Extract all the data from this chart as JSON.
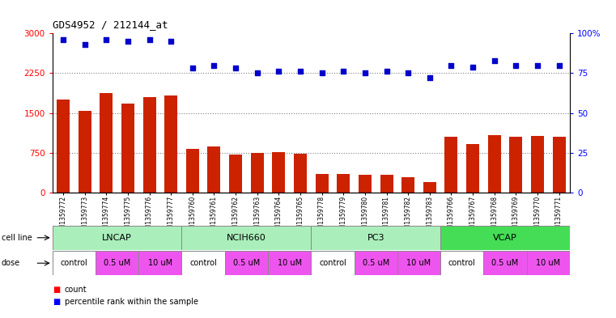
{
  "title": "GDS4952 / 212144_at",
  "samples": [
    "GSM1359772",
    "GSM1359773",
    "GSM1359774",
    "GSM1359775",
    "GSM1359776",
    "GSM1359777",
    "GSM1359760",
    "GSM1359761",
    "GSM1359762",
    "GSM1359763",
    "GSM1359764",
    "GSM1359765",
    "GSM1359778",
    "GSM1359779",
    "GSM1359780",
    "GSM1359781",
    "GSM1359782",
    "GSM1359783",
    "GSM1359766",
    "GSM1359767",
    "GSM1359768",
    "GSM1359769",
    "GSM1359770",
    "GSM1359771"
  ],
  "counts": [
    1750,
    1540,
    1870,
    1680,
    1800,
    1830,
    820,
    870,
    720,
    750,
    760,
    730,
    350,
    350,
    330,
    330,
    290,
    200,
    1050,
    920,
    1080,
    1050,
    1060,
    1050
  ],
  "percentile_ranks": [
    96,
    93,
    96,
    95,
    96,
    95,
    78,
    80,
    78,
    75,
    76,
    76,
    75,
    76,
    75,
    76,
    75,
    72,
    80,
    79,
    83,
    80,
    80,
    80
  ],
  "bar_color": "#cc2200",
  "dot_color": "#0000cc",
  "cell_lines": [
    {
      "name": "LNCAP",
      "start": 0,
      "end": 6,
      "color": "#aaeebb"
    },
    {
      "name": "NCIH660",
      "start": 6,
      "end": 12,
      "color": "#aaeebb"
    },
    {
      "name": "PC3",
      "start": 12,
      "end": 18,
      "color": "#aaeebb"
    },
    {
      "name": "VCAP",
      "start": 18,
      "end": 24,
      "color": "#44dd55"
    }
  ],
  "doses": [
    {
      "label": "control",
      "start": 0,
      "end": 2,
      "color": "#ffffff"
    },
    {
      "label": "0.5 uM",
      "start": 2,
      "end": 4,
      "color": "#ee55ee"
    },
    {
      "label": "10 uM",
      "start": 4,
      "end": 6,
      "color": "#ee55ee"
    },
    {
      "label": "control",
      "start": 6,
      "end": 8,
      "color": "#ffffff"
    },
    {
      "label": "0.5 uM",
      "start": 8,
      "end": 10,
      "color": "#ee55ee"
    },
    {
      "label": "10 uM",
      "start": 10,
      "end": 12,
      "color": "#ee55ee"
    },
    {
      "label": "control",
      "start": 12,
      "end": 14,
      "color": "#ffffff"
    },
    {
      "label": "0.5 uM",
      "start": 14,
      "end": 16,
      "color": "#ee55ee"
    },
    {
      "label": "10 uM",
      "start": 16,
      "end": 18,
      "color": "#ee55ee"
    },
    {
      "label": "control",
      "start": 18,
      "end": 20,
      "color": "#ffffff"
    },
    {
      "label": "0.5 uM",
      "start": 20,
      "end": 22,
      "color": "#ee55ee"
    },
    {
      "label": "10 uM",
      "start": 22,
      "end": 24,
      "color": "#ee55ee"
    }
  ],
  "ylim_left": [
    0,
    3000
  ],
  "yticks_left": [
    0,
    750,
    1500,
    2250,
    3000
  ],
  "ylim_right": [
    0,
    100
  ],
  "yticks_right": [
    0,
    25,
    50,
    75,
    100
  ],
  "grid_values": [
    750,
    1500,
    2250
  ],
  "bg_color": "#ffffff",
  "plot_bg_color": "#ffffff",
  "xaxis_bg_color": "#dddddd"
}
